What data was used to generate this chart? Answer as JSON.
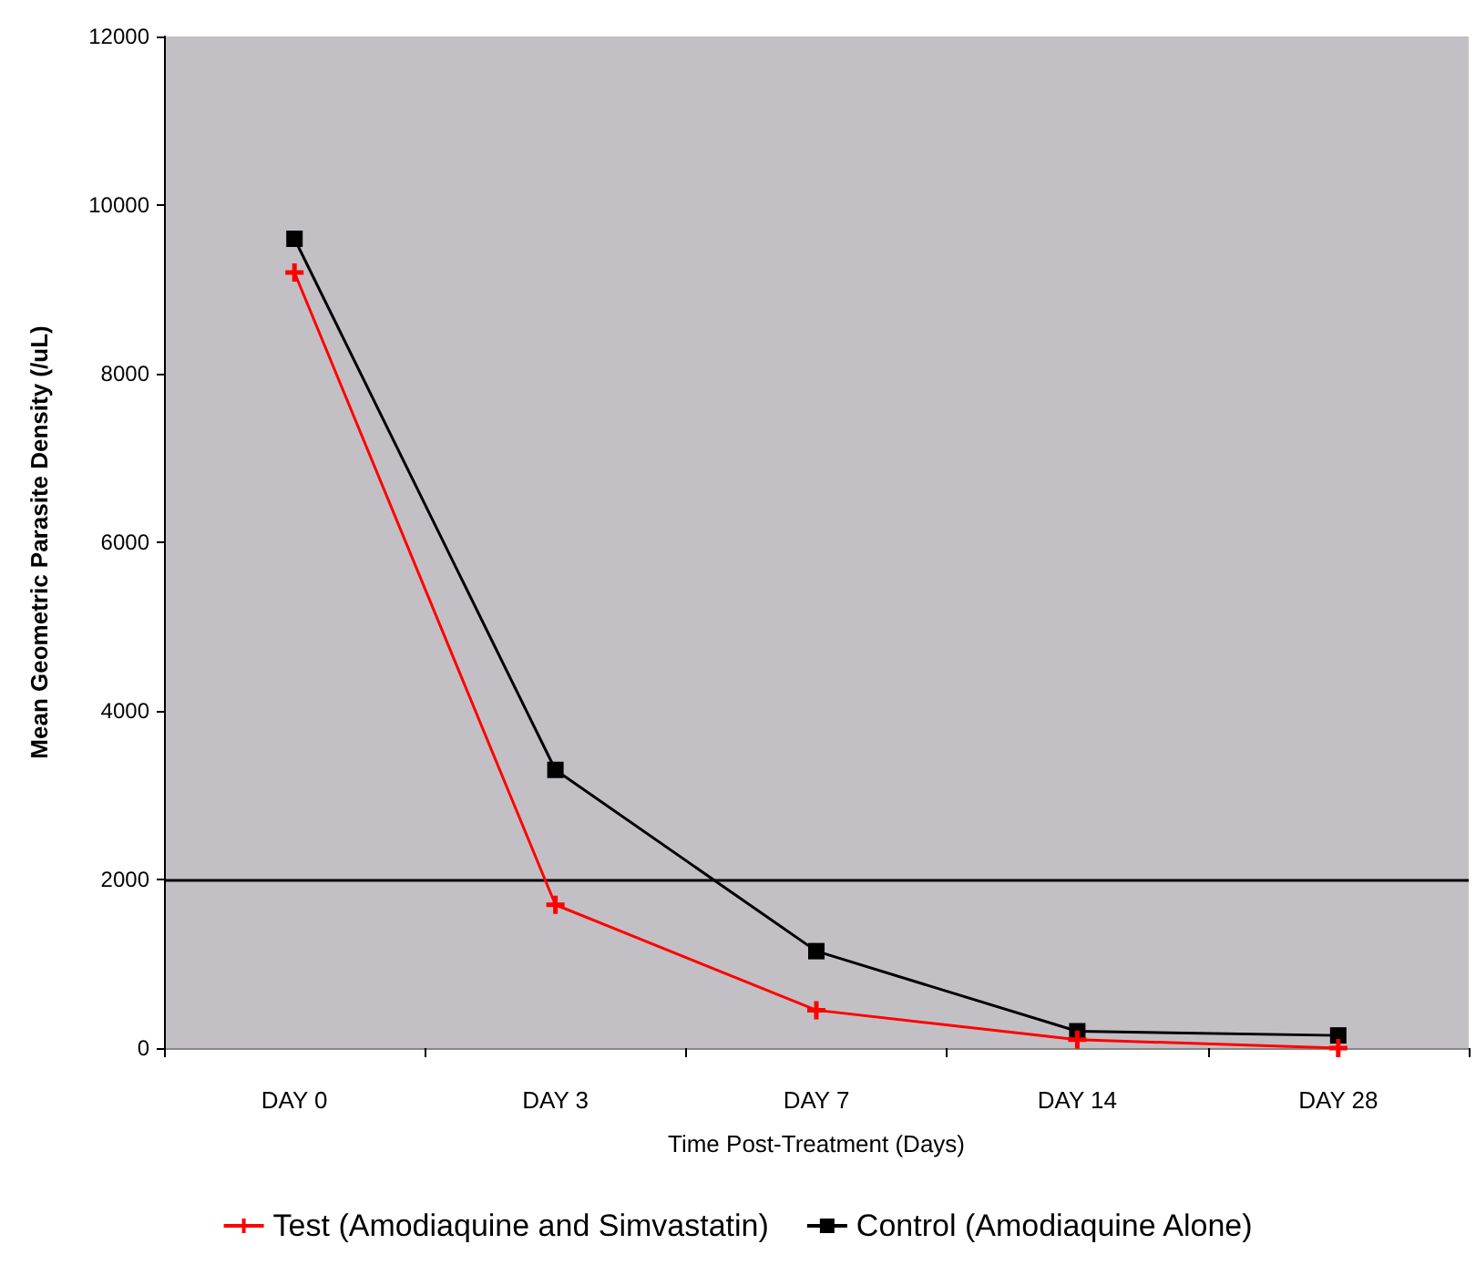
{
  "chart_data": {
    "type": "line",
    "xlabel": "Time Post-Treatment (Days)",
    "ylabel": "Mean Geometric Parasite Density (/uL)",
    "categories": [
      "DAY 0",
      "DAY 3",
      "DAY 7",
      "DAY 14",
      "DAY 28"
    ],
    "series": [
      {
        "name": "Test (Amodiaquine and Simvastatin)",
        "color": "#ff0000",
        "marker": "cross",
        "values": [
          9200,
          1700,
          450,
          100,
          0
        ]
      },
      {
        "name": "Control (Amodiaquine Alone)",
        "color": "#000000",
        "marker": "square",
        "values": [
          9600,
          3300,
          1150,
          200,
          150
        ]
      }
    ],
    "ylim": [
      0,
      12000
    ],
    "yticks": [
      0,
      2000,
      4000,
      6000,
      8000,
      10000,
      12000
    ],
    "ref_lines": [
      {
        "axis": "y",
        "value": 2000,
        "color": "#000000"
      }
    ],
    "grid": false,
    "legend": "bottom"
  }
}
